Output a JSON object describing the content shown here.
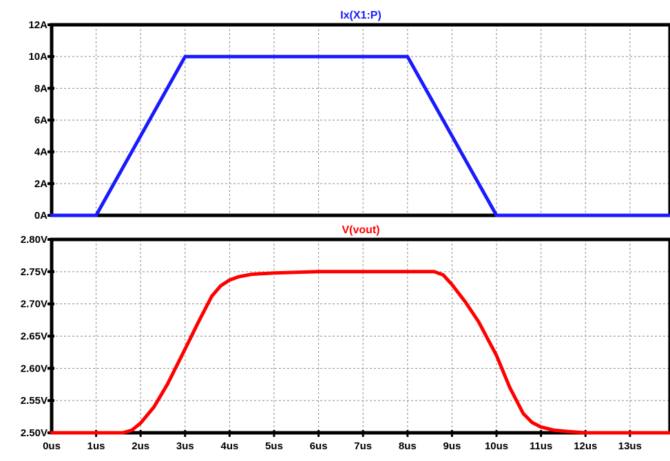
{
  "chart_data": [
    {
      "type": "line",
      "title": "Ix(X1:P)",
      "title_color": "#1a1aff",
      "xlabel": "",
      "ylabel": "",
      "xlim": [
        0,
        13.9
      ],
      "ylim": [
        0,
        12
      ],
      "grid": true,
      "yticks": [
        {
          "value": 0,
          "label": "0A"
        },
        {
          "value": 2,
          "label": "2A"
        },
        {
          "value": 4,
          "label": "4A"
        },
        {
          "value": 6,
          "label": "6A"
        },
        {
          "value": 8,
          "label": "8A"
        },
        {
          "value": 10,
          "label": "10A"
        },
        {
          "value": 12,
          "label": "12A"
        }
      ],
      "series": [
        {
          "name": "Ix(X1:P)",
          "color": "#1a1aff",
          "x": [
            0,
            1,
            3,
            8,
            10,
            13.9
          ],
          "y": [
            0,
            0,
            10,
            10,
            0,
            0
          ]
        }
      ]
    },
    {
      "type": "line",
      "title": "V(vout)",
      "title_color": "#ff0000",
      "xlabel": "",
      "ylabel": "",
      "xlim": [
        0,
        13.9
      ],
      "ylim": [
        2.5,
        2.8
      ],
      "grid": true,
      "yticks": [
        {
          "value": 2.5,
          "label": "2.50V"
        },
        {
          "value": 2.55,
          "label": "2.55V"
        },
        {
          "value": 2.6,
          "label": "2.60V"
        },
        {
          "value": 2.65,
          "label": "2.65V"
        },
        {
          "value": 2.7,
          "label": "2.70V"
        },
        {
          "value": 2.75,
          "label": "2.75V"
        },
        {
          "value": 2.8,
          "label": "2.80V"
        }
      ],
      "xticks": [
        {
          "value": 0,
          "label": "0us"
        },
        {
          "value": 1,
          "label": "1us"
        },
        {
          "value": 2,
          "label": "2us"
        },
        {
          "value": 3,
          "label": "3us"
        },
        {
          "value": 4,
          "label": "4us"
        },
        {
          "value": 5,
          "label": "5us"
        },
        {
          "value": 6,
          "label": "6us"
        },
        {
          "value": 7,
          "label": "7us"
        },
        {
          "value": 8,
          "label": "8us"
        },
        {
          "value": 9,
          "label": "9us"
        },
        {
          "value": 10,
          "label": "10us"
        },
        {
          "value": 11,
          "label": "11us"
        },
        {
          "value": 12,
          "label": "12us"
        },
        {
          "value": 13,
          "label": "13us"
        }
      ],
      "series": [
        {
          "name": "V(vout)",
          "color": "#ff0000",
          "x": [
            0,
            1.6,
            1.8,
            2.0,
            2.3,
            2.6,
            3.0,
            3.3,
            3.6,
            3.8,
            4.0,
            4.2,
            4.5,
            5.0,
            6.0,
            7.0,
            8.0,
            8.6,
            8.8,
            9.0,
            9.3,
            9.6,
            10.0,
            10.3,
            10.6,
            10.8,
            11.0,
            11.3,
            11.6,
            12.0,
            12.5,
            13.9
          ],
          "y": [
            2.5,
            2.5,
            2.504,
            2.515,
            2.54,
            2.575,
            2.63,
            2.672,
            2.712,
            2.728,
            2.737,
            2.742,
            2.746,
            2.748,
            2.75,
            2.75,
            2.75,
            2.75,
            2.745,
            2.73,
            2.703,
            2.672,
            2.62,
            2.57,
            2.53,
            2.516,
            2.509,
            2.504,
            2.502,
            2.5,
            2.5,
            2.5
          ]
        }
      ]
    }
  ]
}
